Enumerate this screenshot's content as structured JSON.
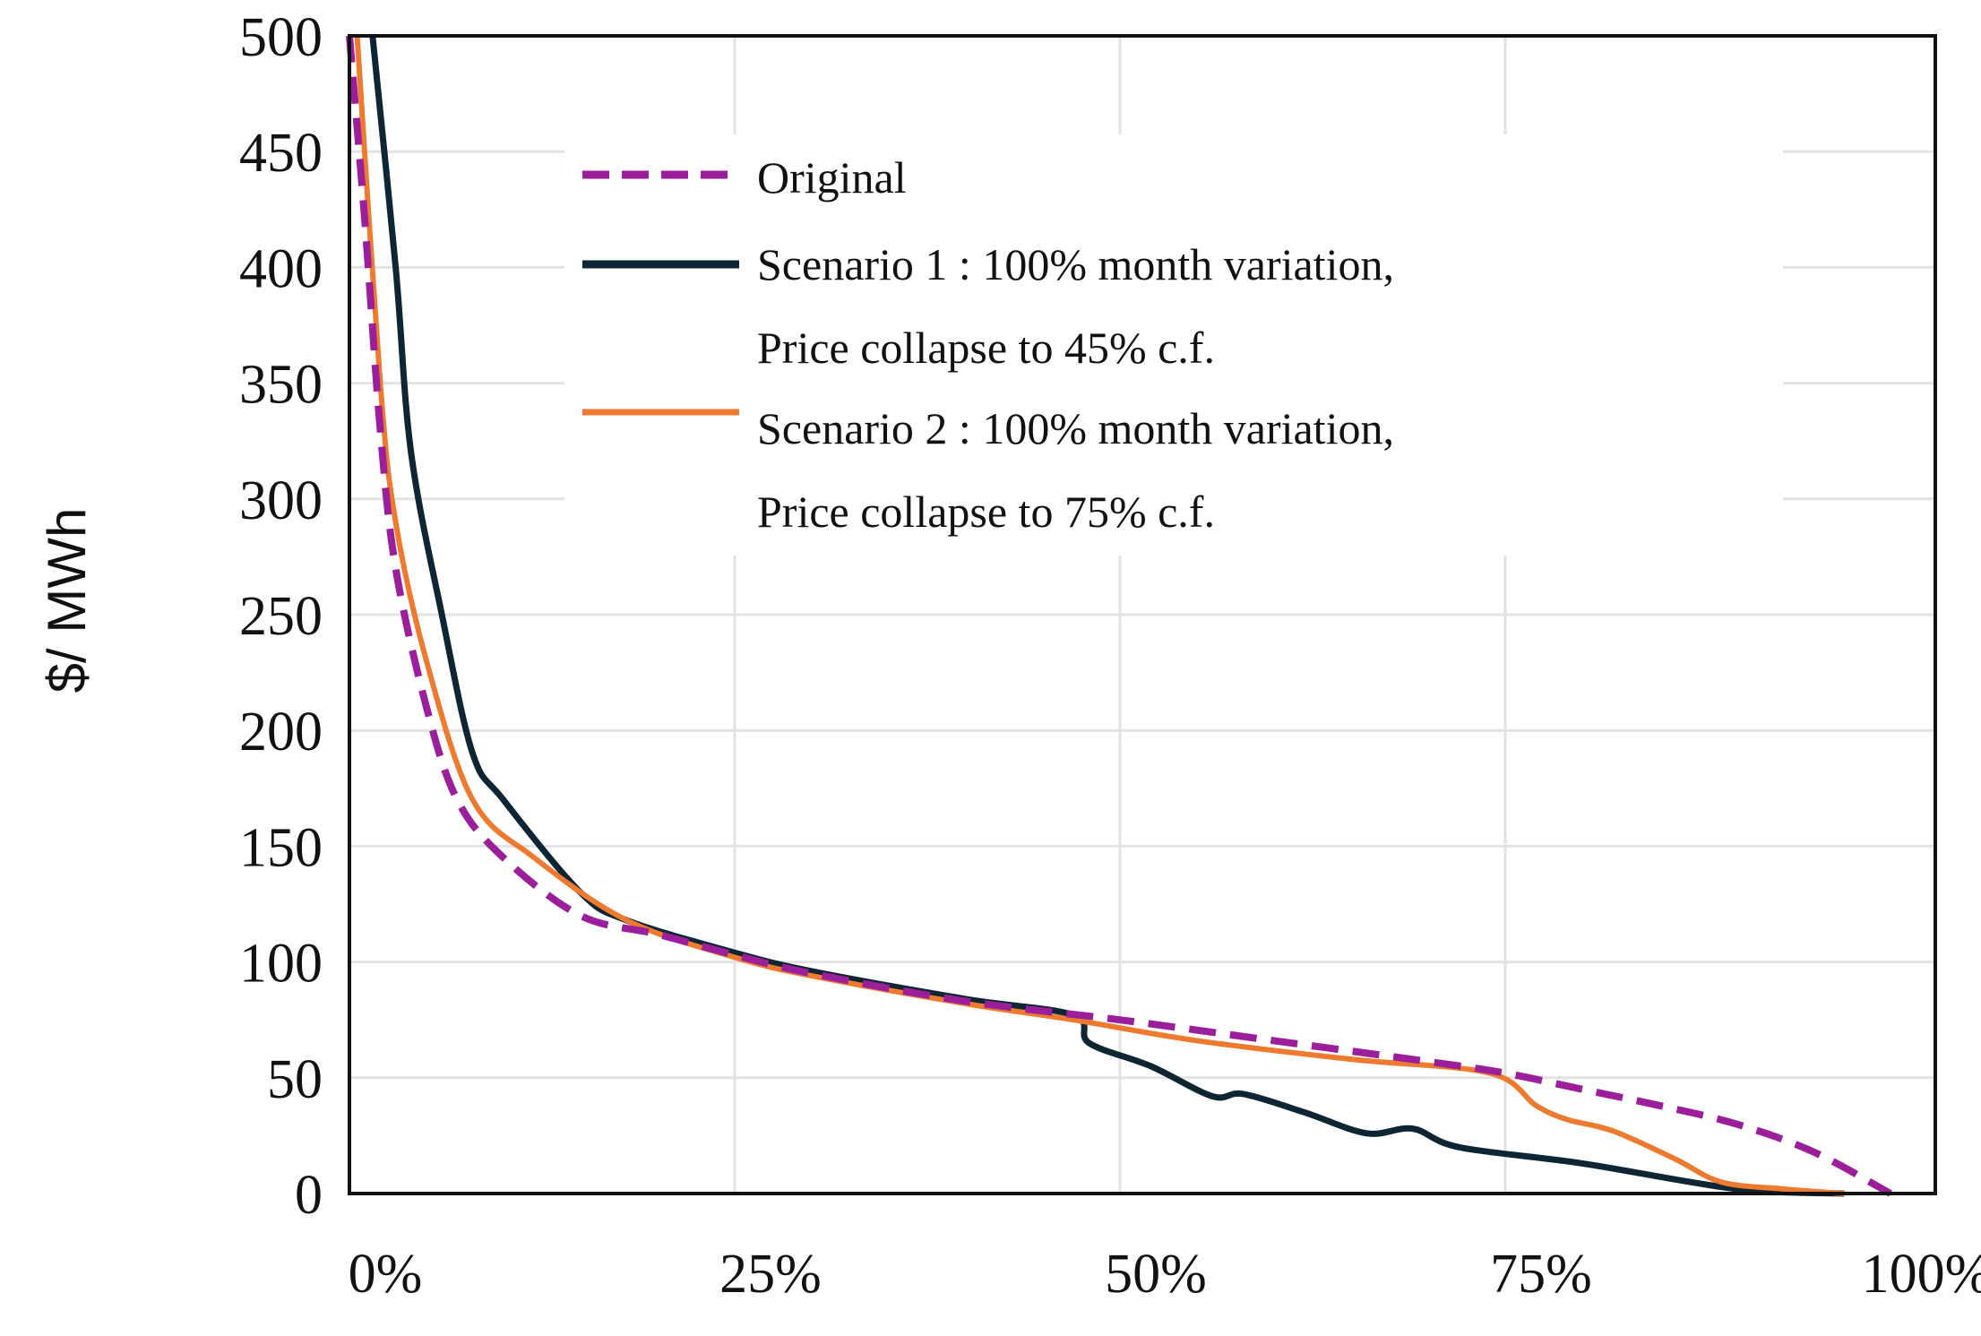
{
  "chart_data": {
    "type": "line",
    "title": "",
    "xlabel": "",
    "ylabel": "$/ MWh",
    "xlim": [
      0,
      100
    ],
    "ylim": [
      0,
      500
    ],
    "x_ticks": [
      "0%",
      "25%",
      "50%",
      "75%",
      "100%"
    ],
    "y_ticks": [
      "0",
      "50",
      "100",
      "150",
      "200",
      "250",
      "300",
      "350",
      "400",
      "450",
      "500"
    ],
    "grid": true,
    "legend_position": "upper right (inside)",
    "series": [
      {
        "name": "Original",
        "color": "#9B1F9B",
        "style": "dashed",
        "points": [
          [
            0,
            500
          ],
          [
            1,
            420
          ],
          [
            2,
            330
          ],
          [
            3,
            270
          ],
          [
            5,
            210
          ],
          [
            7,
            170
          ],
          [
            10,
            145
          ],
          [
            15,
            120
          ],
          [
            20,
            112
          ],
          [
            25,
            103
          ],
          [
            30,
            95
          ],
          [
            40,
            83
          ],
          [
            50,
            75
          ],
          [
            60,
            66
          ],
          [
            70,
            57
          ],
          [
            75,
            52
          ],
          [
            80,
            45
          ],
          [
            85,
            38
          ],
          [
            90,
            30
          ],
          [
            95,
            18
          ],
          [
            100,
            0
          ]
        ]
      },
      {
        "name": "Scenario 1 : 100% month variation, Price collapse to 45% c.f.",
        "color": "#0E2633",
        "style": "solid",
        "points": [
          [
            1.5,
            500
          ],
          [
            3,
            400
          ],
          [
            4,
            320
          ],
          [
            6,
            250
          ],
          [
            8,
            190
          ],
          [
            10,
            170
          ],
          [
            15,
            130
          ],
          [
            18,
            118
          ],
          [
            25,
            104
          ],
          [
            30,
            96
          ],
          [
            40,
            84
          ],
          [
            47,
            77
          ],
          [
            48,
            65
          ],
          [
            52,
            55
          ],
          [
            56,
            42
          ],
          [
            58,
            43
          ],
          [
            62,
            35
          ],
          [
            66,
            26
          ],
          [
            69,
            28
          ],
          [
            72,
            20
          ],
          [
            80,
            13
          ],
          [
            90,
            2
          ],
          [
            97,
            0
          ]
        ]
      },
      {
        "name": "Scenario 2 : 100% month variation, Price collapse to 75% c.f.",
        "color": "#EE7A30",
        "style": "solid",
        "points": [
          [
            0.5,
            500
          ],
          [
            2,
            350
          ],
          [
            3,
            290
          ],
          [
            5,
            230
          ],
          [
            8,
            170
          ],
          [
            12,
            145
          ],
          [
            18,
            118
          ],
          [
            25,
            102
          ],
          [
            30,
            94
          ],
          [
            40,
            82
          ],
          [
            47,
            75
          ],
          [
            55,
            66
          ],
          [
            65,
            58
          ],
          [
            74,
            52
          ],
          [
            77,
            38
          ],
          [
            79,
            32
          ],
          [
            82,
            27
          ],
          [
            86,
            15
          ],
          [
            89,
            5
          ],
          [
            93,
            2
          ],
          [
            97,
            0
          ]
        ]
      }
    ]
  },
  "legend": {
    "items": [
      {
        "line1": "Original",
        "line2": ""
      },
      {
        "line1": "Scenario 1 : 100% month variation,",
        "line2": "Price collapse to 45% c.f."
      },
      {
        "line1": "Scenario 2 : 100% month variation,",
        "line2": "Price collapse to 75% c.f."
      }
    ]
  },
  "axes": {
    "ylabel": "$/ MWh"
  }
}
